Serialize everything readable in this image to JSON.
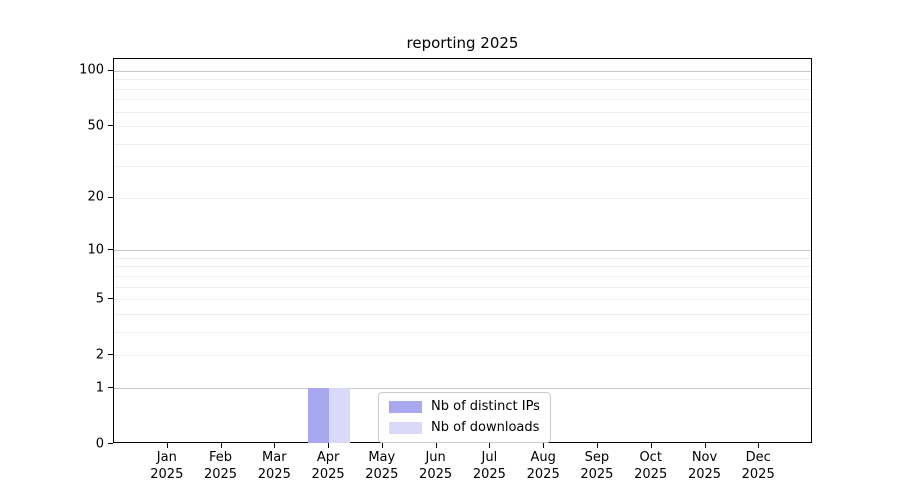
{
  "chart_data": {
    "type": "bar",
    "title": "reporting 2025",
    "x_axis": {
      "months": [
        "Jan",
        "Feb",
        "Mar",
        "Apr",
        "May",
        "Jun",
        "Jul",
        "Aug",
        "Sep",
        "Oct",
        "Nov",
        "Dec"
      ],
      "year": "2025"
    },
    "series": [
      {
        "name": "Nb of distinct IPs",
        "color": "#a8a8f0",
        "values": [
          0,
          0,
          0,
          1,
          0,
          0,
          0,
          0,
          0,
          0,
          0,
          0
        ]
      },
      {
        "name": "Nb of downloads",
        "color": "#dadaf8",
        "values": [
          0,
          0,
          0,
          1,
          0,
          0,
          0,
          0,
          0,
          0,
          0,
          0
        ]
      }
    ],
    "y_scale": "log1p",
    "ylim": [
      0,
      116
    ],
    "y_major_ticks": [
      0,
      1,
      2,
      5,
      10,
      20,
      50,
      100
    ],
    "y_grid_major": [
      1,
      10,
      100
    ],
    "y_grid_minor": [
      2,
      3,
      4,
      5,
      6,
      7,
      8,
      9,
      20,
      30,
      40,
      50,
      60,
      70,
      80,
      90
    ],
    "grid": {
      "major_color": "#c7c7c7",
      "minor_color": "#ededed",
      "vertical": false
    },
    "legend": {
      "position": "lower center",
      "frame": true
    }
  }
}
